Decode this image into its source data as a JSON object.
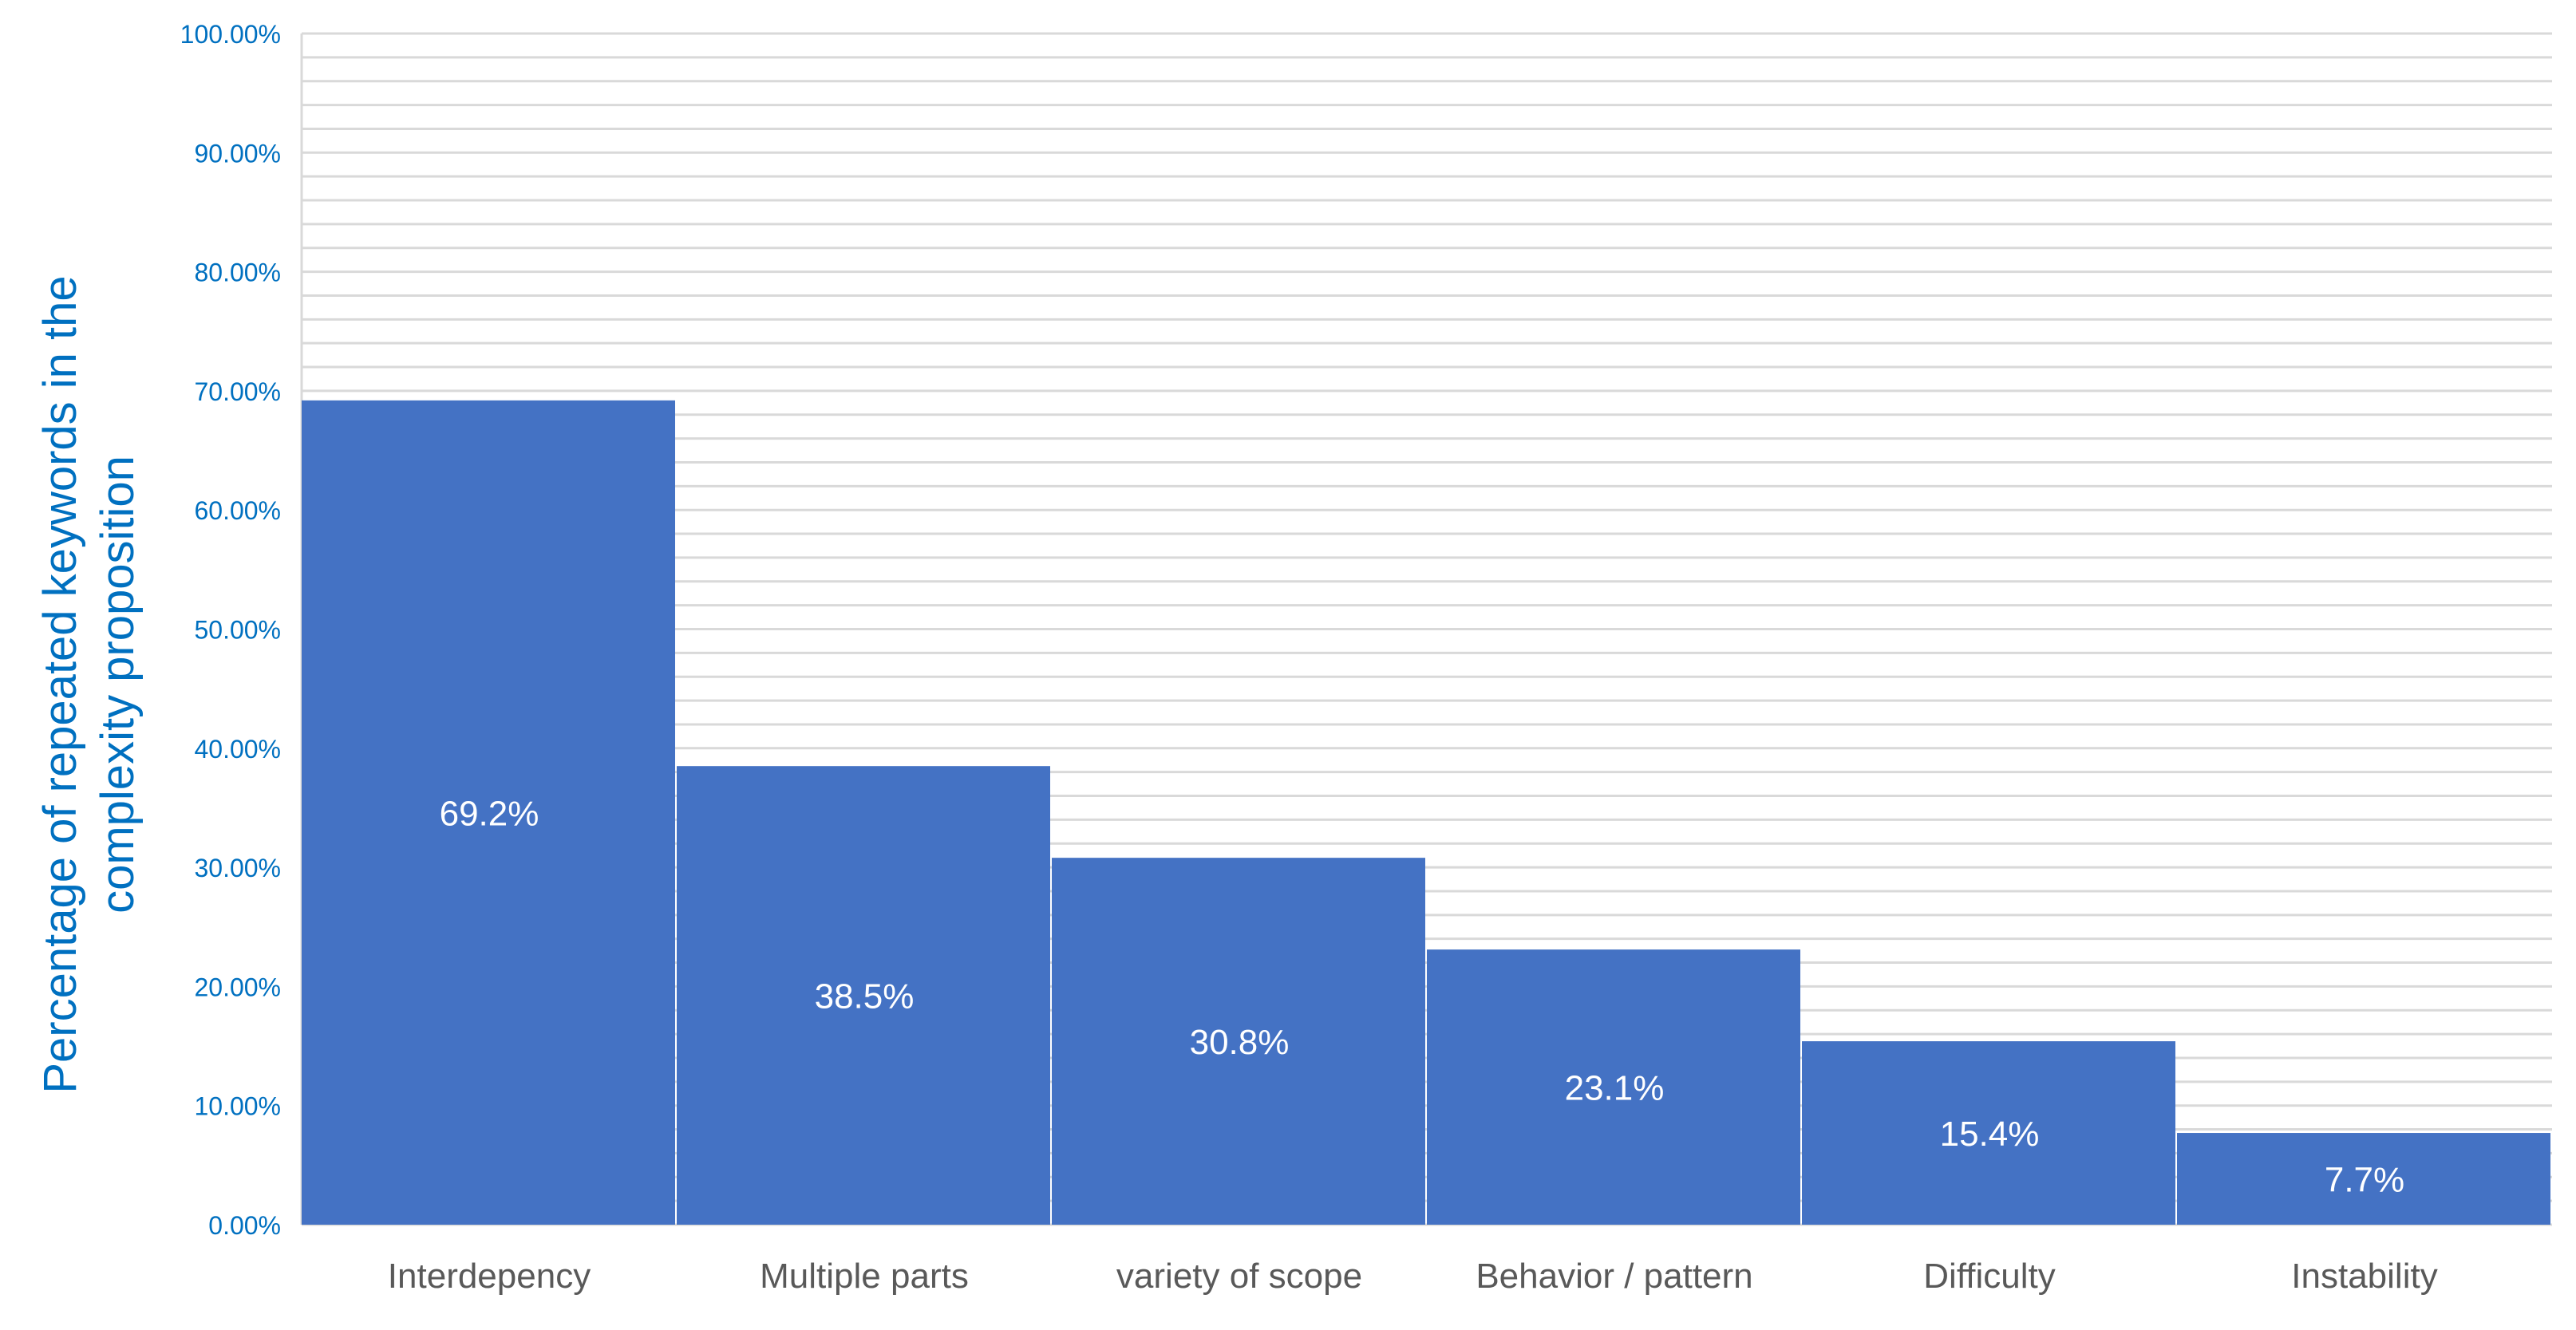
{
  "chart_data": {
    "type": "bar",
    "title": "",
    "xlabel": "",
    "ylabel": [
      "Percentage of repeated keywords in the",
      "complexity proposition"
    ],
    "categories": [
      "Interdepency",
      "Multiple parts",
      "variety of scope",
      "Behavior / pattern",
      "Difficulty",
      "Instability"
    ],
    "values": [
      69.2,
      38.5,
      30.8,
      23.1,
      15.4,
      7.7
    ],
    "data_labels": [
      "69.2%",
      "38.5%",
      "30.8%",
      "23.1%",
      "15.4%",
      "7.7%"
    ],
    "ylim": [
      0,
      100
    ],
    "y_ticks": [
      0,
      10,
      20,
      30,
      40,
      50,
      60,
      70,
      80,
      90,
      100
    ],
    "y_tick_labels": [
      "0.00%",
      "10.00%",
      "20.00%",
      "30.00%",
      "40.00%",
      "50.00%",
      "60.00%",
      "70.00%",
      "80.00%",
      "90.00%",
      "100.00%"
    ],
    "minor_grid_step": 2,
    "grid": true,
    "legend": "none",
    "colors": {
      "bar": "#4472C4",
      "tick_labels": "#0070C0",
      "axis_title": "#0070C0",
      "category_labels": "#595959",
      "data_labels": "#FFFFFF",
      "gridlines": "#D9D9D9"
    }
  }
}
